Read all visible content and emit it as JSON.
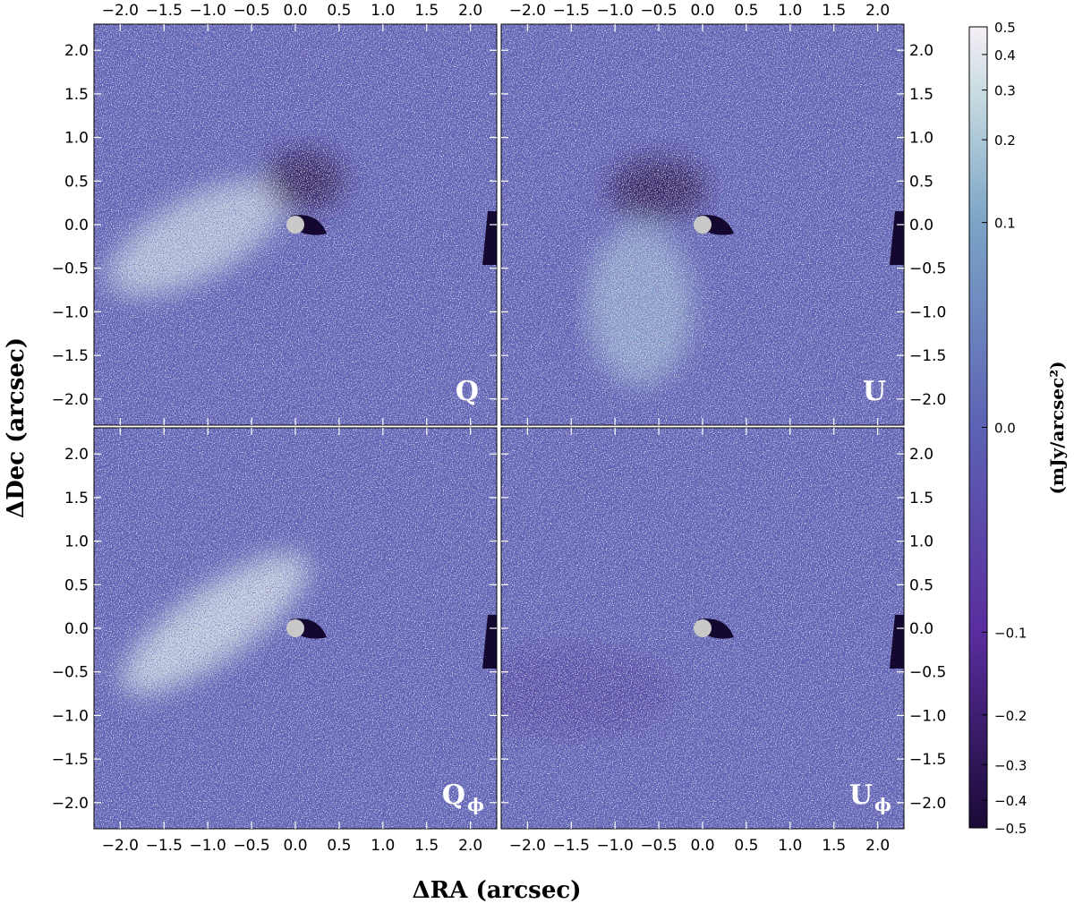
{
  "chart_data": {
    "type": "heatmap",
    "x_label": "ΔRA (arcsec)",
    "y_label": "ΔDec (arcsec)",
    "colorbar_label": "(mJy/arcsec²)",
    "panels": [
      {
        "label": "Q"
      },
      {
        "label": "U"
      },
      {
        "label": "Q",
        "subscript": "ϕ"
      },
      {
        "label": "U",
        "subscript": "ϕ"
      }
    ],
    "xlim": [
      -2.3,
      2.3
    ],
    "ylim": [
      -2.3,
      2.3
    ],
    "xticks": [
      {
        "value": -2,
        "label": "−2.0"
      },
      {
        "value": -1.5,
        "label": "−1.5"
      },
      {
        "value": -1,
        "label": "−1.0"
      },
      {
        "value": -0.5,
        "label": "−0.5"
      },
      {
        "value": 0,
        "label": "0.0"
      },
      0.5,
      {
        "value": 1,
        "label": "1.0"
      },
      1.5,
      {
        "value": 2,
        "label": "2.0"
      }
    ],
    "yticks": [
      {
        "value": -2,
        "label": "−2.0"
      },
      {
        "value": -1.5,
        "label": "−1.5"
      },
      {
        "value": -1,
        "label": "−1.0"
      },
      {
        "value": -0.5,
        "label": "−0.5"
      },
      {
        "value": 0,
        "label": "0.0"
      },
      0.5,
      {
        "value": 1,
        "label": "1.0"
      },
      1.5,
      {
        "value": 2,
        "label": "2.0"
      }
    ],
    "colorbar_scale": "asinh",
    "clim": [
      -0.5,
      0.5
    ],
    "cticks": [
      0.5,
      0.4,
      0.3,
      0.2,
      0.1,
      {
        "value": 0,
        "label": "0.0"
      },
      {
        "value": -0.1,
        "label": "−0.1"
      },
      {
        "value": -0.2,
        "label": "−0.2"
      },
      {
        "value": -0.3,
        "label": "−0.3"
      },
      {
        "value": -0.4,
        "label": "−0.4"
      },
      {
        "value": -0.5,
        "label": "−0.5"
      }
    ],
    "colormap": [
      {
        "value": -0.5,
        "color": "#1a0a36"
      },
      {
        "value": -0.1,
        "color": "#5a2d9e"
      },
      {
        "value": 0,
        "color": "#5c62b4"
      },
      {
        "value": 0.1,
        "color": "#7ba4c6"
      },
      {
        "value": 0.3,
        "color": "#cadde2"
      },
      {
        "value": 0.5,
        "color": "#f6eef6"
      }
    ]
  }
}
